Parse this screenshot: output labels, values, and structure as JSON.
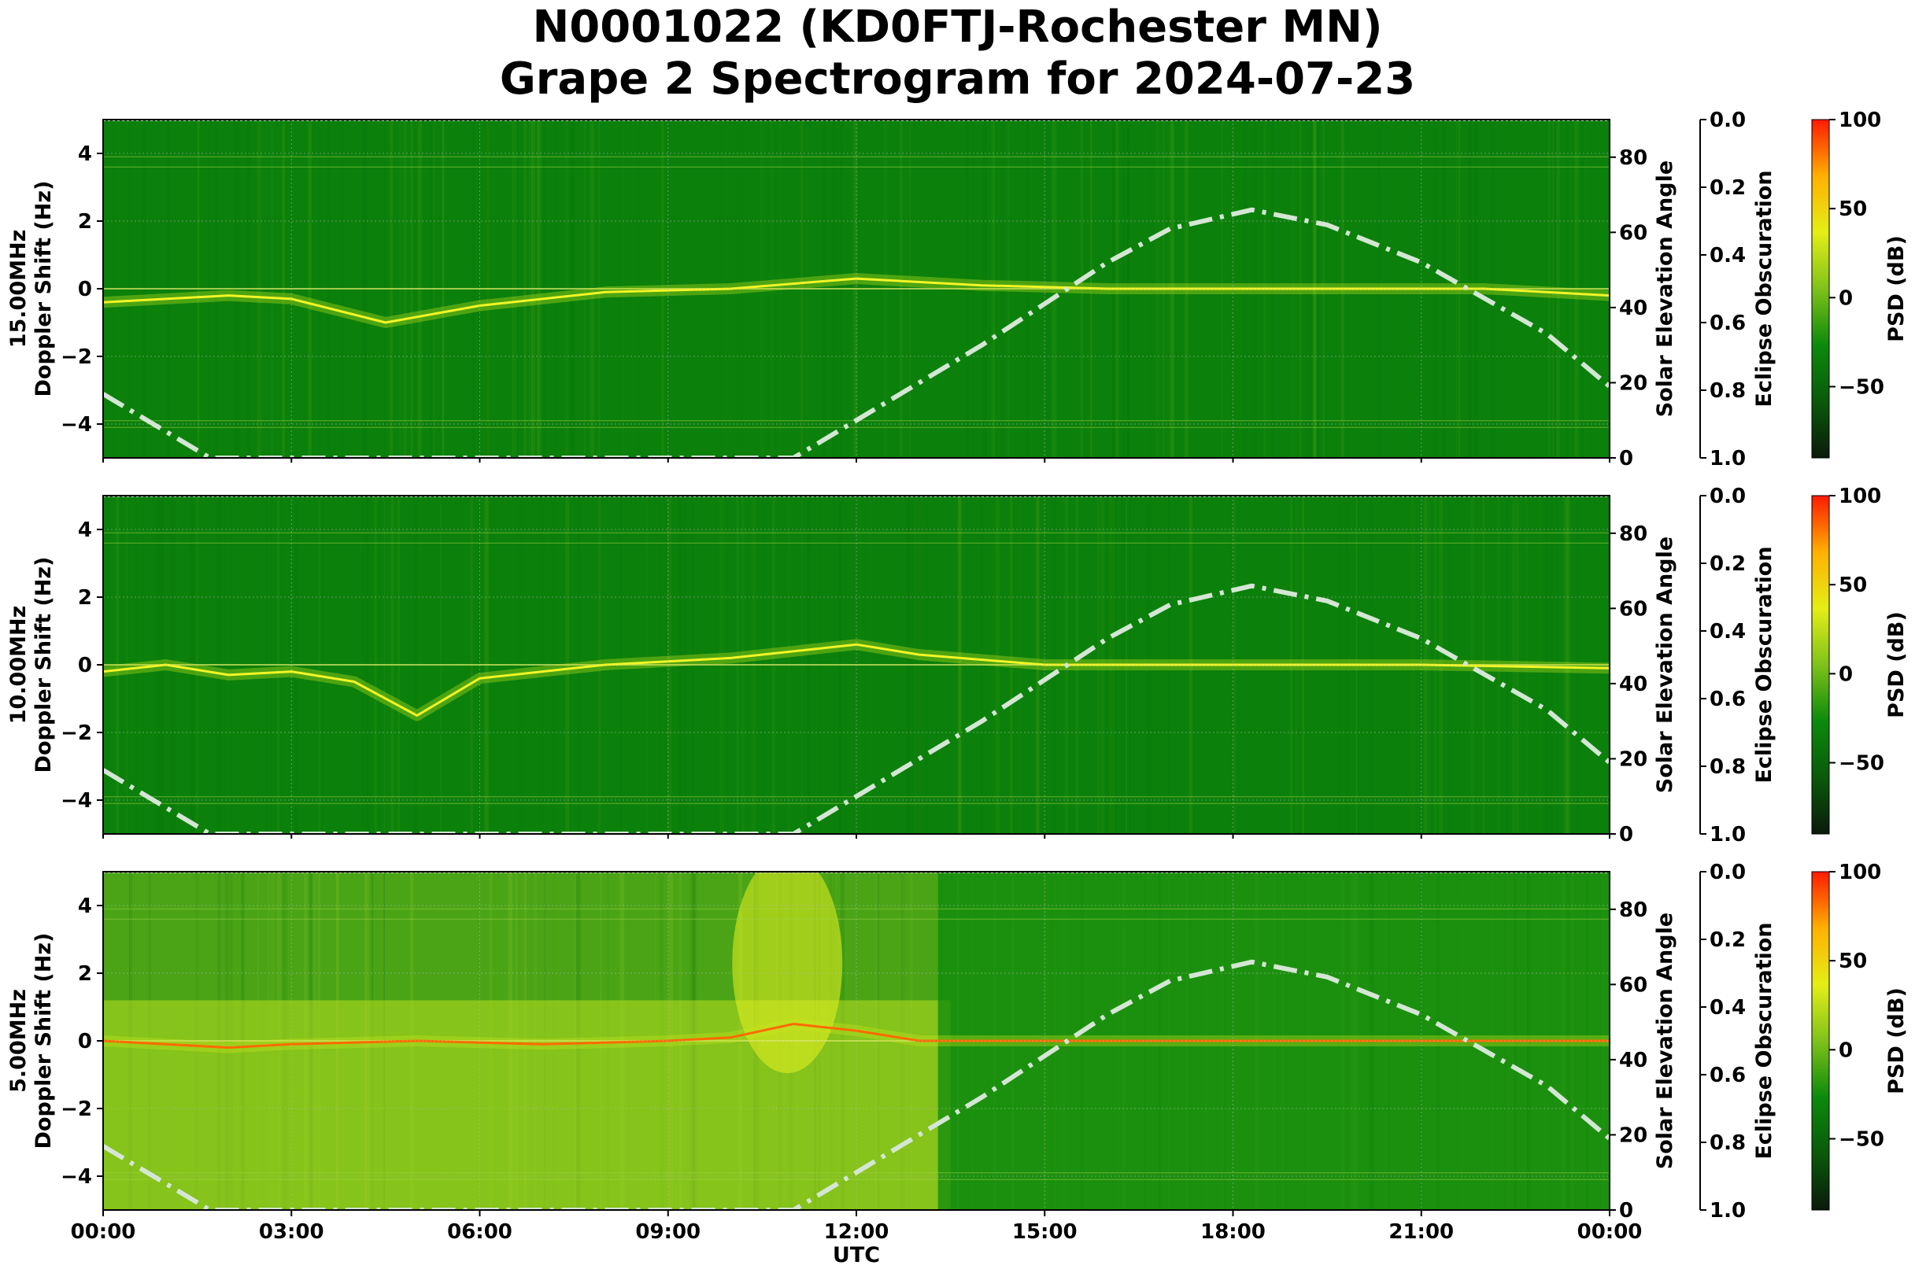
{
  "title": {
    "line1": "N0001022 (KD0FTJ-Rochester MN)",
    "line2": "Grape 2 Spectrogram for 2024-07-23"
  },
  "colors": {
    "colormap": [
      "#0b1a0b",
      "#0a5a0a",
      "#0c8a0c",
      "#7fc21a",
      "#e4ee16",
      "#ffb000",
      "#ff1a00"
    ],
    "solar_curve": "#d4e6d4"
  },
  "chart_data": [
    {
      "type": "heatmap",
      "panel": "15.00MHz",
      "ylabel": "15.00MHz\nDoppler Shift (Hz)",
      "ylim": [
        -5,
        5
      ],
      "yticks": [
        4,
        2,
        0,
        -2,
        -4
      ],
      "yticklabels": [
        "4",
        "2",
        "0",
        "−2",
        "−4"
      ],
      "y2label": "Solar Elevation Angle",
      "y2lim": [
        0,
        90
      ],
      "y2ticks": [
        0,
        20,
        40,
        60,
        80
      ],
      "y3label": "Eclipse Obscuration",
      "y3lim": [
        0.0,
        1.0
      ],
      "y3ticks": [
        "0.0",
        "0.2",
        "0.4",
        "0.6",
        "0.8",
        "1.0"
      ],
      "colorbar_label": "PSD (dB)",
      "colorbar_range": [
        -90,
        100
      ],
      "colorbar_ticks": [
        100,
        50,
        0,
        -50
      ],
      "colorbar_ticklabels": [
        "100",
        "50",
        "0",
        "−50"
      ],
      "background_level": "green",
      "solar_elevation": {
        "x_hours": [
          0,
          1.7,
          11.0,
          14,
          16,
          17,
          18.3,
          19.5,
          21,
          23,
          24
        ],
        "y_deg": [
          17,
          0,
          0,
          30,
          52,
          61,
          66,
          62,
          52,
          33,
          19
        ]
      },
      "signal_trace": {
        "x_hours": [
          0,
          2,
          3,
          4.5,
          6,
          8,
          10,
          12,
          14,
          16,
          18,
          20,
          22,
          24
        ],
        "y_hz": [
          -0.4,
          -0.2,
          -0.3,
          -1.0,
          -0.5,
          -0.1,
          0.0,
          0.3,
          0.1,
          0.0,
          0.0,
          0.0,
          0.0,
          -0.2
        ]
      }
    },
    {
      "type": "heatmap",
      "panel": "10.00MHz",
      "ylabel": "10.00MHz\nDoppler Shift (Hz)",
      "ylim": [
        -5,
        5
      ],
      "yticks": [
        4,
        2,
        0,
        -2,
        -4
      ],
      "yticklabels": [
        "4",
        "2",
        "0",
        "−2",
        "−4"
      ],
      "y2label": "Solar Elevation Angle",
      "y2lim": [
        0,
        90
      ],
      "y2ticks": [
        0,
        20,
        40,
        60,
        80
      ],
      "y3label": "Eclipse Obscuration",
      "y3lim": [
        0.0,
        1.0
      ],
      "y3ticks": [
        "0.0",
        "0.2",
        "0.4",
        "0.6",
        "0.8",
        "1.0"
      ],
      "colorbar_label": "PSD (dB)",
      "colorbar_range": [
        -90,
        100
      ],
      "colorbar_ticks": [
        100,
        50,
        0,
        -50
      ],
      "colorbar_ticklabels": [
        "100",
        "50",
        "0",
        "−50"
      ],
      "background_level": "green",
      "solar_elevation": {
        "x_hours": [
          0,
          1.7,
          11.0,
          14,
          16,
          17,
          18.3,
          19.5,
          21,
          23,
          24
        ],
        "y_deg": [
          17,
          0,
          0,
          30,
          52,
          61,
          66,
          62,
          52,
          33,
          19
        ]
      },
      "signal_trace": {
        "x_hours": [
          0,
          1,
          2,
          3,
          4,
          5,
          6,
          8,
          10,
          12,
          13,
          15,
          18,
          21,
          24
        ],
        "y_hz": [
          -0.2,
          0.0,
          -0.3,
          -0.2,
          -0.5,
          -1.5,
          -0.4,
          0.0,
          0.2,
          0.6,
          0.3,
          0.0,
          0.0,
          0.0,
          -0.1
        ]
      }
    },
    {
      "type": "heatmap",
      "panel": "5.00MHz",
      "ylabel": "5.00MHz\nDoppler Shift (Hz)",
      "xlabel": "UTC",
      "xticks": [
        "00:00",
        "03:00",
        "06:00",
        "09:00",
        "12:00",
        "15:00",
        "18:00",
        "21:00",
        "00:00"
      ],
      "xlim_hours": [
        0,
        24
      ],
      "ylim": [
        -5,
        5
      ],
      "yticks": [
        4,
        2,
        0,
        -2,
        -4
      ],
      "yticklabels": [
        "4",
        "2",
        "0",
        "−2",
        "−4"
      ],
      "y2label": "Solar Elevation Angle",
      "y2lim": [
        0,
        90
      ],
      "y2ticks": [
        0,
        20,
        40,
        60,
        80
      ],
      "y3label": "Eclipse Obscuration",
      "y3lim": [
        0.0,
        1.0
      ],
      "y3ticks": [
        "0.0",
        "0.2",
        "0.4",
        "0.6",
        "0.8",
        "1.0"
      ],
      "colorbar_label": "PSD (dB)",
      "colorbar_range": [
        -90,
        100
      ],
      "colorbar_ticks": [
        100,
        50,
        0,
        -50
      ],
      "colorbar_ticklabels": [
        "100",
        "50",
        "0",
        "−50"
      ],
      "background_level": "yellow-green",
      "solar_elevation": {
        "x_hours": [
          0,
          1.7,
          11.0,
          14,
          16,
          17,
          18.3,
          19.5,
          21,
          23,
          24
        ],
        "y_deg": [
          17,
          0,
          0,
          30,
          52,
          61,
          66,
          62,
          52,
          33,
          19
        ]
      },
      "signal_trace": {
        "x_hours": [
          0,
          2,
          3,
          5,
          7,
          9,
          10,
          11,
          12,
          13,
          15,
          18,
          21,
          24
        ],
        "y_hz": [
          0.0,
          -0.2,
          -0.1,
          0.0,
          -0.1,
          0.0,
          0.1,
          0.5,
          0.3,
          0.0,
          0.0,
          0.0,
          0.0,
          0.0
        ]
      }
    }
  ]
}
